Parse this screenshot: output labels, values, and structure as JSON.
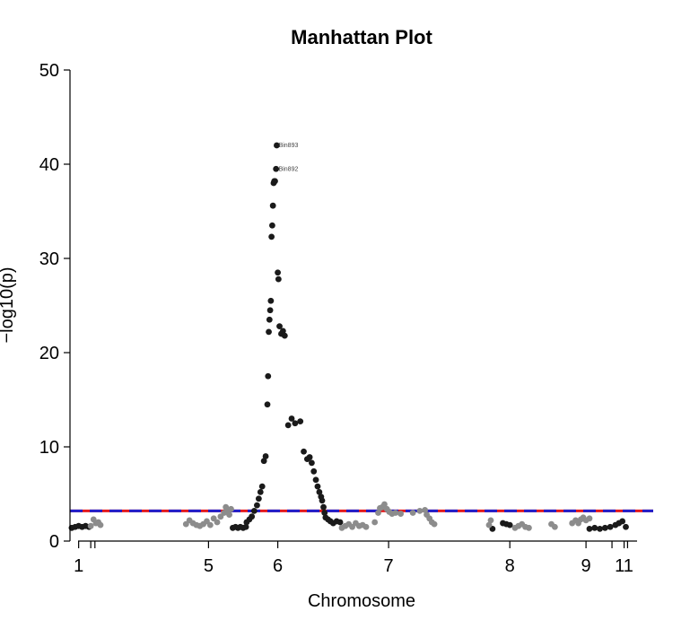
{
  "chart_data": {
    "type": "scatter",
    "title": "Manhattan Plot",
    "xlabel": "Chromosome",
    "ylabel": "−log10(p)",
    "ylim": [
      0,
      50
    ],
    "yticks": [
      0,
      10,
      20,
      30,
      40,
      50
    ],
    "xlim": [
      0,
      16.4
    ],
    "chromosome_ticks": [
      {
        "label": "1",
        "x": 0.25
      },
      {
        "label": "",
        "x": 0.6
      },
      {
        "label": "",
        "x": 0.72
      },
      {
        "label": "5",
        "x": 4.0
      },
      {
        "label": "6",
        "x": 6.0
      },
      {
        "label": "7",
        "x": 9.2
      },
      {
        "label": "8",
        "x": 12.7
      },
      {
        "label": "9",
        "x": 14.9
      },
      {
        "label": "",
        "x": 15.65
      },
      {
        "label": "11",
        "x": 16.0
      },
      {
        "label": "",
        "x": 16.1
      }
    ],
    "thresholds": [
      {
        "value": 3.2,
        "color": "#e41a1c",
        "style": "solid"
      },
      {
        "value": 3.2,
        "color": "#1f1fcc",
        "style": "dashed"
      }
    ],
    "colors": {
      "dark": "#1a1a1a",
      "light": "#8c8c8c"
    },
    "annotations": [
      {
        "label": "Bin893",
        "x": 5.87,
        "y": 42.0
      },
      {
        "label": "Bin892",
        "x": 5.87,
        "y": 39.5
      }
    ],
    "series": [
      {
        "color": "dark",
        "points": [
          [
            0.05,
            1.4
          ],
          [
            0.15,
            1.5
          ],
          [
            0.25,
            1.6
          ],
          [
            0.35,
            1.5
          ],
          [
            0.45,
            1.6
          ],
          [
            0.55,
            1.5
          ],
          [
            4.7,
            1.4
          ],
          [
            4.78,
            1.5
          ],
          [
            4.85,
            1.4
          ],
          [
            4.92,
            1.5
          ],
          [
            5.0,
            1.4
          ],
          [
            5.08,
            1.5
          ],
          [
            5.1,
            2.0
          ],
          [
            5.18,
            2.3
          ],
          [
            5.25,
            2.6
          ],
          [
            5.32,
            3.2
          ],
          [
            5.4,
            3.8
          ],
          [
            5.45,
            4.5
          ],
          [
            5.5,
            5.2
          ],
          [
            5.55,
            5.8
          ],
          [
            5.6,
            8.5
          ],
          [
            5.65,
            9.0
          ],
          [
            5.7,
            14.5
          ],
          [
            5.72,
            17.5
          ],
          [
            5.74,
            22.2
          ],
          [
            5.76,
            23.5
          ],
          [
            5.78,
            24.5
          ],
          [
            5.8,
            25.5
          ],
          [
            5.82,
            32.3
          ],
          [
            5.84,
            33.5
          ],
          [
            5.86,
            35.6
          ],
          [
            5.88,
            38.0
          ],
          [
            5.9,
            38.2
          ],
          [
            5.92,
            38.2
          ],
          [
            5.95,
            39.5
          ],
          [
            5.97,
            42.0
          ],
          [
            6.0,
            28.5
          ],
          [
            6.02,
            27.8
          ],
          [
            6.05,
            22.8
          ],
          [
            6.1,
            22.0
          ],
          [
            6.15,
            22.3
          ],
          [
            6.2,
            21.8
          ],
          [
            6.3,
            12.3
          ],
          [
            6.4,
            13.0
          ],
          [
            6.5,
            12.5
          ],
          [
            6.65,
            12.7
          ],
          [
            6.75,
            9.5
          ],
          [
            6.85,
            8.7
          ],
          [
            6.92,
            8.9
          ],
          [
            6.98,
            8.3
          ],
          [
            7.04,
            7.4
          ],
          [
            7.1,
            6.5
          ],
          [
            7.15,
            5.8
          ],
          [
            7.2,
            5.2
          ],
          [
            7.25,
            4.7
          ],
          [
            7.28,
            4.3
          ],
          [
            7.32,
            3.6
          ],
          [
            7.35,
            3.0
          ],
          [
            7.38,
            2.5
          ],
          [
            7.45,
            2.3
          ],
          [
            7.52,
            2.1
          ],
          [
            7.6,
            1.9
          ],
          [
            7.7,
            2.1
          ],
          [
            7.8,
            2.0
          ],
          [
            12.2,
            1.3
          ],
          [
            12.5,
            1.9
          ],
          [
            12.6,
            1.8
          ],
          [
            12.7,
            1.7
          ],
          [
            15.0,
            1.3
          ],
          [
            15.15,
            1.4
          ],
          [
            15.3,
            1.3
          ],
          [
            15.45,
            1.4
          ],
          [
            15.6,
            1.5
          ],
          [
            15.75,
            1.7
          ],
          [
            15.85,
            1.9
          ],
          [
            15.95,
            2.1
          ],
          [
            16.05,
            1.5
          ]
        ]
      },
      {
        "color": "light",
        "points": [
          [
            0.6,
            1.6
          ],
          [
            0.68,
            2.3
          ],
          [
            0.75,
            1.9
          ],
          [
            0.82,
            2.0
          ],
          [
            0.88,
            1.7
          ],
          [
            3.35,
            1.8
          ],
          [
            3.45,
            2.2
          ],
          [
            3.55,
            1.9
          ],
          [
            3.65,
            1.7
          ],
          [
            3.75,
            1.6
          ],
          [
            3.85,
            1.8
          ],
          [
            3.95,
            2.1
          ],
          [
            4.05,
            1.7
          ],
          [
            4.15,
            2.4
          ],
          [
            4.25,
            2.0
          ],
          [
            4.35,
            2.6
          ],
          [
            4.45,
            3.0
          ],
          [
            4.5,
            3.6
          ],
          [
            4.55,
            3.3
          ],
          [
            4.6,
            2.8
          ],
          [
            4.65,
            3.4
          ],
          [
            7.85,
            1.4
          ],
          [
            7.95,
            1.6
          ],
          [
            8.05,
            1.8
          ],
          [
            8.15,
            1.5
          ],
          [
            8.25,
            1.9
          ],
          [
            8.35,
            1.6
          ],
          [
            8.45,
            1.7
          ],
          [
            8.55,
            1.5
          ],
          [
            8.8,
            2.0
          ],
          [
            8.9,
            3.0
          ],
          [
            8.95,
            3.5
          ],
          [
            9.02,
            3.6
          ],
          [
            9.08,
            3.9
          ],
          [
            9.15,
            3.4
          ],
          [
            9.22,
            3.1
          ],
          [
            9.3,
            2.9
          ],
          [
            9.4,
            3.0
          ],
          [
            9.55,
            2.9
          ],
          [
            9.9,
            3.0
          ],
          [
            10.1,
            3.2
          ],
          [
            10.25,
            3.3
          ],
          [
            10.3,
            2.8
          ],
          [
            10.38,
            2.4
          ],
          [
            10.45,
            2.0
          ],
          [
            10.52,
            1.8
          ],
          [
            12.1,
            1.7
          ],
          [
            12.15,
            2.2
          ],
          [
            12.85,
            1.4
          ],
          [
            12.95,
            1.6
          ],
          [
            13.05,
            1.8
          ],
          [
            13.15,
            1.5
          ],
          [
            13.25,
            1.4
          ],
          [
            13.9,
            1.8
          ],
          [
            14.0,
            1.5
          ],
          [
            14.5,
            1.9
          ],
          [
            14.6,
            2.2
          ],
          [
            14.68,
            1.9
          ],
          [
            14.75,
            2.3
          ],
          [
            14.82,
            2.5
          ],
          [
            14.9,
            2.2
          ],
          [
            15.0,
            2.4
          ]
        ]
      }
    ]
  }
}
